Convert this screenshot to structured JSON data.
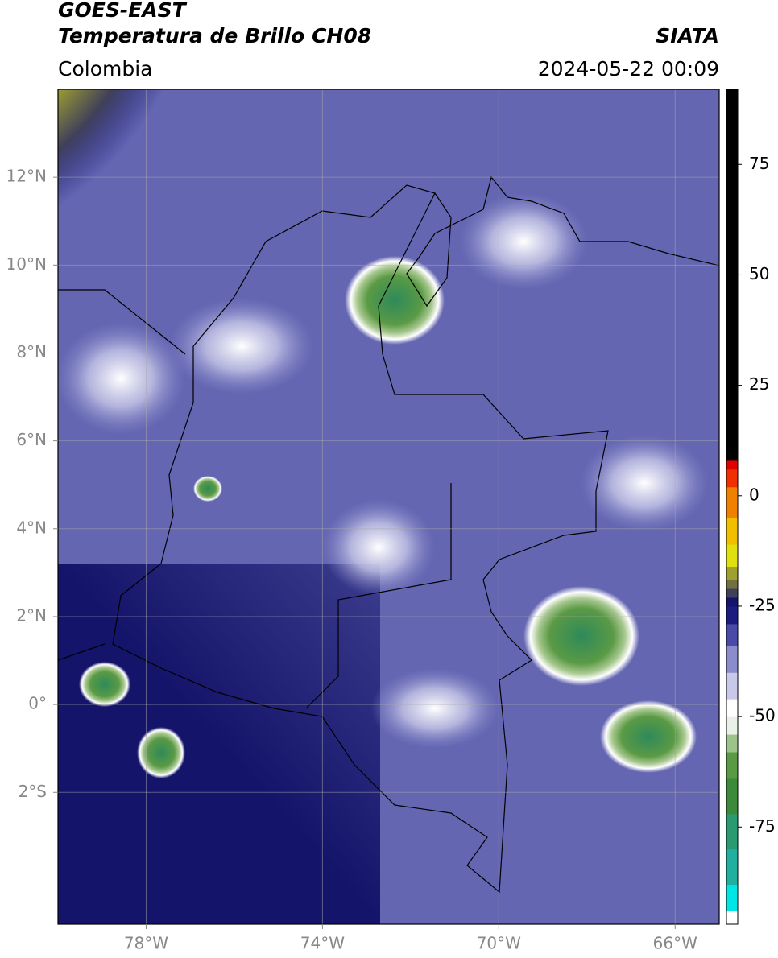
{
  "chart_data": {
    "type": "map",
    "title": "GOES-EAST",
    "subtitle": "Temperatura de Brillo CH08",
    "source": "SIATA",
    "region": "Colombia",
    "datetime": "2024-05-22 00:09",
    "xlim": [
      -80,
      -65
    ],
    "ylim": [
      -5,
      14
    ],
    "xticks": [
      {
        "value": -78,
        "label": "78°W"
      },
      {
        "value": -74,
        "label": "74°W"
      },
      {
        "value": -70,
        "label": "70°W"
      },
      {
        "value": -66,
        "label": "66°W"
      }
    ],
    "yticks": [
      {
        "value": 12,
        "label": "12°N"
      },
      {
        "value": 10,
        "label": "10°N"
      },
      {
        "value": 8,
        "label": "8°N"
      },
      {
        "value": 6,
        "label": "6°N"
      },
      {
        "value": 4,
        "label": "4°N"
      },
      {
        "value": 2,
        "label": "2°N"
      },
      {
        "value": 0,
        "label": "0°"
      },
      {
        "value": -2,
        "label": "2°S"
      }
    ],
    "grid": true,
    "colorbar": {
      "lim": [
        -97,
        92
      ],
      "ticks": [
        75,
        50,
        25,
        0,
        -25,
        -50,
        -75
      ],
      "stops": [
        {
          "value": -97,
          "color": "#ffffff"
        },
        {
          "value": -94,
          "color": "#00e5e5"
        },
        {
          "value": -88,
          "color": "#20b0a0"
        },
        {
          "value": -80,
          "color": "#2a9a70"
        },
        {
          "value": -72,
          "color": "#3d8a3a"
        },
        {
          "value": -64,
          "color": "#5a9a45"
        },
        {
          "value": -58,
          "color": "#9cc48a"
        },
        {
          "value": -54,
          "color": "#e8f0e8"
        },
        {
          "value": -50,
          "color": "#ffffff"
        },
        {
          "value": -46,
          "color": "#c8c8e8"
        },
        {
          "value": -40,
          "color": "#8a8ccc"
        },
        {
          "value": -34,
          "color": "#4a4aa8"
        },
        {
          "value": -29,
          "color": "#1c1c80"
        },
        {
          "value": -25,
          "color": "#14146a"
        },
        {
          "value": -23,
          "color": "#40405a"
        },
        {
          "value": -21,
          "color": "#707040"
        },
        {
          "value": -19,
          "color": "#a0a030"
        },
        {
          "value": -16,
          "color": "#e0e010"
        },
        {
          "value": -11,
          "color": "#f0c000"
        },
        {
          "value": -5,
          "color": "#f08000"
        },
        {
          "value": 2,
          "color": "#f03000"
        },
        {
          "value": 6,
          "color": "#e00000"
        },
        {
          "value": 8,
          "color": "#000000"
        }
      ]
    }
  }
}
